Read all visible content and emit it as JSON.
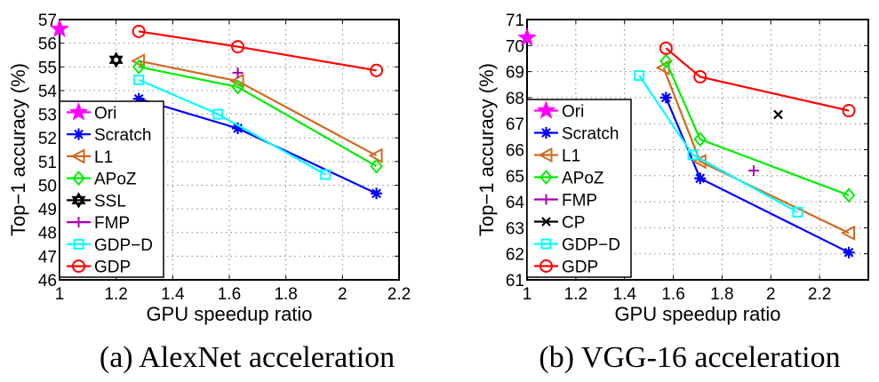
{
  "chart_data": [
    {
      "type": "line",
      "caption": "(a)  AlexNet acceleration",
      "title": "",
      "xlabel": "GPU speedup ratio",
      "ylabel": "Top−1 accuracy (%)",
      "xlim": [
        1,
        2.2
      ],
      "ylim": [
        46,
        57
      ],
      "xticks": [
        "1",
        "1.2",
        "1.4",
        "1.6",
        "1.8",
        "2",
        "2.2"
      ],
      "xtick_values": [
        1,
        1.2,
        1.4,
        1.6,
        1.8,
        2,
        2.2
      ],
      "yticks": [
        "46",
        "47",
        "48",
        "49",
        "50",
        "51",
        "52",
        "53",
        "54",
        "55",
        "56",
        "57"
      ],
      "ytick_values": [
        46,
        47,
        48,
        49,
        50,
        51,
        52,
        53,
        54,
        55,
        56,
        57
      ],
      "grid": true,
      "legend_position": "bottom-left",
      "series": [
        {
          "name": "Ori",
          "color": "#ff00ff",
          "marker": "star",
          "x": [
            1.0
          ],
          "y": [
            56.6
          ]
        },
        {
          "name": "Scratch",
          "color": "#0000ff",
          "marker": "asterisk",
          "x": [
            1.28,
            1.63,
            2.12
          ],
          "y": [
            53.65,
            52.4,
            49.65
          ]
        },
        {
          "name": "L1",
          "color": "#d2691e",
          "marker": "triangle-left",
          "x": [
            1.28,
            1.63,
            2.12
          ],
          "y": [
            55.25,
            54.4,
            51.25
          ]
        },
        {
          "name": "APoZ",
          "color": "#00ee00",
          "marker": "diamond",
          "x": [
            1.28,
            1.63,
            2.12
          ],
          "y": [
            55.0,
            54.15,
            50.8
          ]
        },
        {
          "name": "SSL",
          "color": "#000000",
          "marker": "hexagram",
          "x": [
            1.2
          ],
          "y": [
            55.3
          ]
        },
        {
          "name": "FMP",
          "color": "#aa00aa",
          "marker": "plus",
          "x": [
            1.63
          ],
          "y": [
            54.75
          ]
        },
        {
          "name": "GDP−D",
          "color": "#00ffff",
          "marker": "square",
          "x": [
            1.28,
            1.56,
            1.94
          ],
          "y": [
            54.45,
            53.0,
            50.45
          ]
        },
        {
          "name": "GDP",
          "color": "#ff0000",
          "marker": "circle",
          "x": [
            1.28,
            1.63,
            2.12
          ],
          "y": [
            56.5,
            55.85,
            54.85
          ]
        }
      ]
    },
    {
      "type": "line",
      "caption": "(b)  VGG-16 acceleration",
      "title": "",
      "xlabel": "GPU speedup ratio",
      "ylabel": "Top−1 accuracy (%)",
      "xlim": [
        1,
        2.4
      ],
      "ylim": [
        61,
        71
      ],
      "xticks": [
        "1",
        "1.2",
        "1.4",
        "1.6",
        "1.8",
        "2",
        "2.2"
      ],
      "xtick_values": [
        1,
        1.2,
        1.4,
        1.6,
        1.8,
        2,
        2.2
      ],
      "yticks": [
        "61",
        "62",
        "63",
        "64",
        "65",
        "66",
        "67",
        "68",
        "69",
        "70",
        "71"
      ],
      "ytick_values": [
        61,
        62,
        63,
        64,
        65,
        66,
        67,
        68,
        69,
        70,
        71
      ],
      "grid": true,
      "legend_position": "bottom-left",
      "series": [
        {
          "name": "Ori",
          "color": "#ff00ff",
          "marker": "star",
          "x": [
            1.0
          ],
          "y": [
            70.3
          ]
        },
        {
          "name": "Scratch",
          "color": "#0000ff",
          "marker": "asterisk",
          "x": [
            1.57,
            1.71,
            2.32
          ],
          "y": [
            68.0,
            64.9,
            62.05
          ]
        },
        {
          "name": "L1",
          "color": "#d2691e",
          "marker": "triangle-left",
          "x": [
            1.56,
            1.71,
            2.32
          ],
          "y": [
            69.15,
            65.55,
            62.8
          ]
        },
        {
          "name": "APoZ",
          "color": "#00ee00",
          "marker": "diamond",
          "x": [
            1.57,
            1.71,
            2.32
          ],
          "y": [
            69.4,
            66.4,
            64.25
          ]
        },
        {
          "name": "FMP",
          "color": "#aa00aa",
          "marker": "plus",
          "x": [
            1.93
          ],
          "y": [
            65.2
          ]
        },
        {
          "name": "CP",
          "color": "#000000",
          "marker": "x",
          "x": [
            2.03
          ],
          "y": [
            67.35
          ]
        },
        {
          "name": "GDP−D",
          "color": "#00ffff",
          "marker": "square",
          "x": [
            1.46,
            1.68,
            2.11
          ],
          "y": [
            68.85,
            65.8,
            63.6
          ]
        },
        {
          "name": "GDP",
          "color": "#ff0000",
          "marker": "circle",
          "x": [
            1.57,
            1.71,
            2.32
          ],
          "y": [
            69.9,
            68.8,
            67.5
          ]
        }
      ]
    }
  ]
}
